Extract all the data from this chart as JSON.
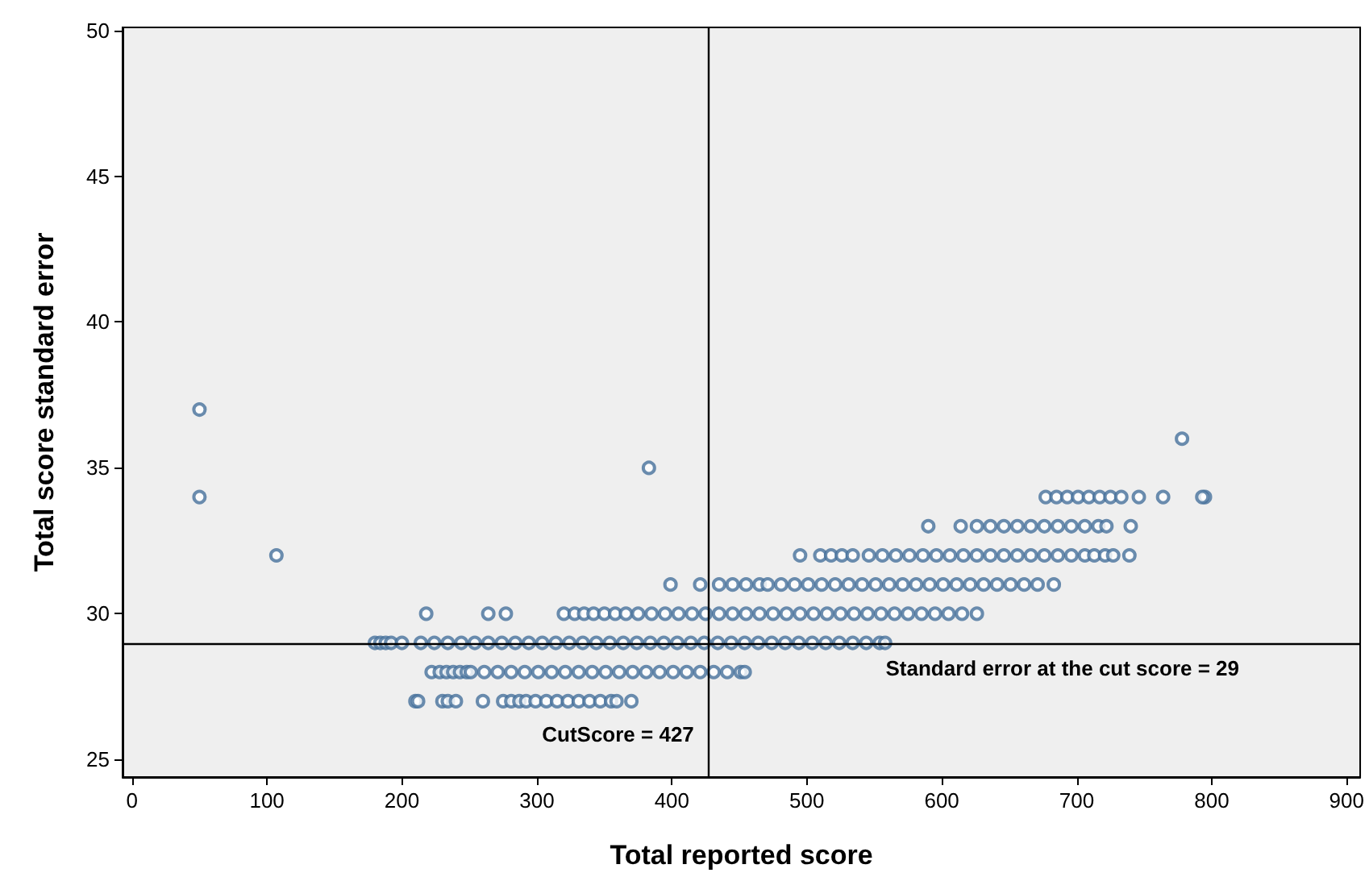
{
  "chart_data": {
    "type": "scatter",
    "xlabel": "Total reported score",
    "ylabel": "Total score standard error",
    "xlim": [
      -7,
      910
    ],
    "xticks": [
      0,
      100,
      200,
      300,
      400,
      500,
      600,
      700,
      800,
      900
    ],
    "ylim": [
      24.4,
      50.1
    ],
    "yticks": [
      25,
      30,
      35,
      40,
      45,
      50
    ],
    "grid": false,
    "marker": "circle",
    "ref_lines": [
      {
        "axis": "x",
        "value": 427,
        "label": "CutScore = 427",
        "color": "#000000"
      },
      {
        "axis": "y",
        "value": 29,
        "label": "Standard error at the cut score = 29",
        "color": "#000000"
      }
    ],
    "series": [
      {
        "color": "#46709b",
        "x": [
          50,
          50,
          107,
          383,
          778,
          795,
          210,
          212,
          230,
          234,
          240,
          260,
          275,
          281,
          287,
          292,
          299,
          307,
          315,
          323,
          331,
          339,
          347,
          355,
          359,
          370,
          222,
          228,
          233,
          238,
          243,
          248,
          251,
          261,
          271,
          281,
          291,
          301,
          311,
          321,
          331,
          341,
          351,
          361,
          371,
          381,
          391,
          401,
          411,
          421,
          431,
          441,
          451,
          454,
          180,
          184,
          188,
          192,
          200,
          214,
          224,
          234,
          244,
          254,
          264,
          274,
          284,
          294,
          304,
          314,
          324,
          334,
          344,
          354,
          364,
          374,
          384,
          394,
          404,
          414,
          424,
          434,
          444,
          454,
          464,
          474,
          484,
          494,
          504,
          514,
          524,
          534,
          544,
          554,
          558,
          218,
          264,
          277,
          320,
          328,
          335,
          342,
          350,
          358,
          366,
          375,
          385,
          395,
          405,
          415,
          425,
          435,
          445,
          455,
          465,
          475,
          485,
          495,
          505,
          515,
          525,
          535,
          545,
          555,
          565,
          575,
          585,
          595,
          605,
          615,
          626,
          399,
          421,
          435,
          445,
          455,
          465,
          471,
          481,
          491,
          501,
          511,
          521,
          531,
          541,
          551,
          561,
          571,
          581,
          591,
          601,
          611,
          621,
          631,
          641,
          651,
          661,
          671,
          683,
          495,
          510,
          518,
          526,
          534,
          546,
          556,
          566,
          576,
          586,
          596,
          606,
          616,
          626,
          636,
          646,
          656,
          666,
          676,
          686,
          696,
          706,
          713,
          721,
          727,
          739,
          590,
          614,
          626,
          636,
          646,
          656,
          666,
          676,
          686,
          696,
          706,
          716,
          722,
          740,
          677,
          685,
          693,
          701,
          709,
          717,
          725,
          733,
          746,
          764,
          793
        ],
        "values": [
          37,
          34,
          32,
          35,
          36,
          34,
          27,
          27,
          27,
          27,
          27,
          27,
          27,
          27,
          27,
          27,
          27,
          27,
          27,
          27,
          27,
          27,
          27,
          27,
          27,
          27,
          28,
          28,
          28,
          28,
          28,
          28,
          28,
          28,
          28,
          28,
          28,
          28,
          28,
          28,
          28,
          28,
          28,
          28,
          28,
          28,
          28,
          28,
          28,
          28,
          28,
          28,
          28,
          28,
          29,
          29,
          29,
          29,
          29,
          29,
          29,
          29,
          29,
          29,
          29,
          29,
          29,
          29,
          29,
          29,
          29,
          29,
          29,
          29,
          29,
          29,
          29,
          29,
          29,
          29,
          29,
          29,
          29,
          29,
          29,
          29,
          29,
          29,
          29,
          29,
          29,
          29,
          29,
          29,
          29,
          30,
          30,
          30,
          30,
          30,
          30,
          30,
          30,
          30,
          30,
          30,
          30,
          30,
          30,
          30,
          30,
          30,
          30,
          30,
          30,
          30,
          30,
          30,
          30,
          30,
          30,
          30,
          30,
          30,
          30,
          30,
          30,
          30,
          30,
          30,
          30,
          31,
          31,
          31,
          31,
          31,
          31,
          31,
          31,
          31,
          31,
          31,
          31,
          31,
          31,
          31,
          31,
          31,
          31,
          31,
          31,
          31,
          31,
          31,
          31,
          31,
          31,
          31,
          31,
          32,
          32,
          32,
          32,
          32,
          32,
          32,
          32,
          32,
          32,
          32,
          32,
          32,
          32,
          32,
          32,
          32,
          32,
          32,
          32,
          32,
          32,
          32,
          32,
          32,
          32,
          33,
          33,
          33,
          33,
          33,
          33,
          33,
          33,
          33,
          33,
          33,
          33,
          33,
          33,
          34,
          34,
          34,
          34,
          34,
          34,
          34,
          34,
          34,
          34,
          34
        ]
      }
    ]
  }
}
